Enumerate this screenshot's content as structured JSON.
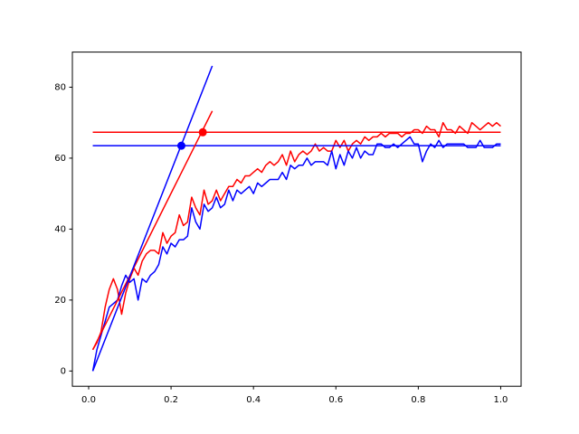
{
  "chart_data": {
    "type": "line",
    "x": [
      0.01,
      0.02,
      0.03,
      0.04,
      0.05,
      0.06,
      0.07,
      0.08,
      0.09,
      0.1,
      0.11,
      0.12,
      0.13,
      0.14,
      0.15,
      0.16,
      0.17,
      0.18,
      0.19,
      0.2,
      0.21,
      0.22,
      0.23,
      0.24,
      0.25,
      0.26,
      0.27,
      0.28,
      0.29,
      0.3,
      0.31,
      0.32,
      0.33,
      0.34,
      0.35,
      0.36,
      0.37,
      0.38,
      0.39,
      0.4,
      0.41,
      0.42,
      0.43,
      0.44,
      0.45,
      0.46,
      0.47,
      0.48,
      0.49,
      0.5,
      0.51,
      0.52,
      0.53,
      0.54,
      0.55,
      0.56,
      0.57,
      0.58,
      0.59,
      0.6,
      0.61,
      0.62,
      0.63,
      0.64,
      0.65,
      0.66,
      0.67,
      0.68,
      0.69,
      0.7,
      0.71,
      0.72,
      0.73,
      0.74,
      0.75,
      0.76,
      0.77,
      0.78,
      0.79,
      0.8,
      0.81,
      0.82,
      0.83,
      0.84,
      0.85,
      0.86,
      0.87,
      0.88,
      0.89,
      0.9,
      0.91,
      0.92,
      0.93,
      0.94,
      0.95,
      0.96,
      0.97,
      0.98,
      0.99,
      1.0
    ],
    "series": [
      {
        "color": "#ff0000",
        "style": "line",
        "values": [
          6,
          8,
          11,
          18,
          23,
          26,
          23,
          16,
          22,
          26,
          29,
          27,
          31,
          33,
          34,
          34,
          33,
          39,
          36,
          38,
          39,
          44,
          41,
          42,
          49,
          46,
          44,
          51,
          47,
          48,
          51,
          48,
          50,
          52,
          52,
          54,
          53,
          55,
          55,
          56,
          57,
          56,
          58,
          59,
          58,
          59,
          61,
          58,
          62,
          59,
          61,
          62,
          61,
          62,
          64,
          62,
          63,
          62,
          62,
          65,
          63,
          65,
          62,
          64,
          65,
          64,
          66,
          65,
          66,
          66,
          67,
          66,
          67,
          67,
          67,
          66,
          67,
          67,
          68,
          68,
          67,
          69,
          68,
          68,
          66,
          70,
          68,
          68,
          67,
          69,
          68,
          67,
          70,
          69,
          68,
          69,
          70,
          69,
          70,
          69
        ]
      },
      {
        "color": "#0000ff",
        "style": "line",
        "values": [
          0,
          6,
          10,
          14,
          18,
          19,
          20,
          24,
          27,
          25,
          26,
          20,
          26,
          25,
          27,
          28,
          30,
          35,
          33,
          36,
          35,
          37,
          37,
          38,
          46,
          42,
          40,
          47,
          45,
          46,
          49,
          46,
          47,
          51,
          48,
          51,
          50,
          51,
          52,
          50,
          53,
          52,
          53,
          54,
          54,
          54,
          56,
          54,
          58,
          57,
          58,
          58,
          60,
          58,
          59,
          59,
          59,
          58,
          62,
          57,
          61,
          58,
          62,
          60,
          63,
          60,
          62,
          61,
          61,
          64,
          64,
          63,
          63,
          64,
          63,
          64,
          65,
          66,
          64,
          64,
          59,
          62,
          64,
          63,
          65,
          63,
          64,
          64,
          64,
          64,
          64,
          63,
          63,
          63,
          65,
          63,
          63,
          63,
          64,
          64
        ]
      },
      {
        "color": "#ff0000",
        "style": "line",
        "x": [
          0.01,
          1.0
        ],
        "values": [
          67.3,
          67.3
        ]
      },
      {
        "color": "#0000ff",
        "style": "line",
        "x": [
          0.01,
          1.0
        ],
        "values": [
          63.5,
          63.5
        ]
      },
      {
        "color": "#ff0000",
        "style": "line",
        "x": [
          0.01,
          0.3
        ],
        "values": [
          6,
          73.3
        ]
      },
      {
        "color": "#0000ff",
        "style": "line",
        "x": [
          0.01,
          0.3
        ],
        "values": [
          0,
          86
        ]
      },
      {
        "color": "#ff0000",
        "style": "dot",
        "x": [
          0.277
        ],
        "values": [
          67.3
        ]
      },
      {
        "color": "#0000ff",
        "style": "dot",
        "x": [
          0.225
        ],
        "values": [
          63.5
        ]
      }
    ],
    "xlim": [
      -0.0395,
      1.0495
    ],
    "xticks": [
      {
        "value": 0,
        "label": "0.0"
      },
      0.2,
      0.4,
      0.6,
      0.8,
      {
        "value": 1,
        "label": "1.0"
      }
    ],
    "ylim": [
      -4.3,
      89.9
    ],
    "yticks": [
      0,
      20,
      40,
      60,
      80
    ]
  }
}
